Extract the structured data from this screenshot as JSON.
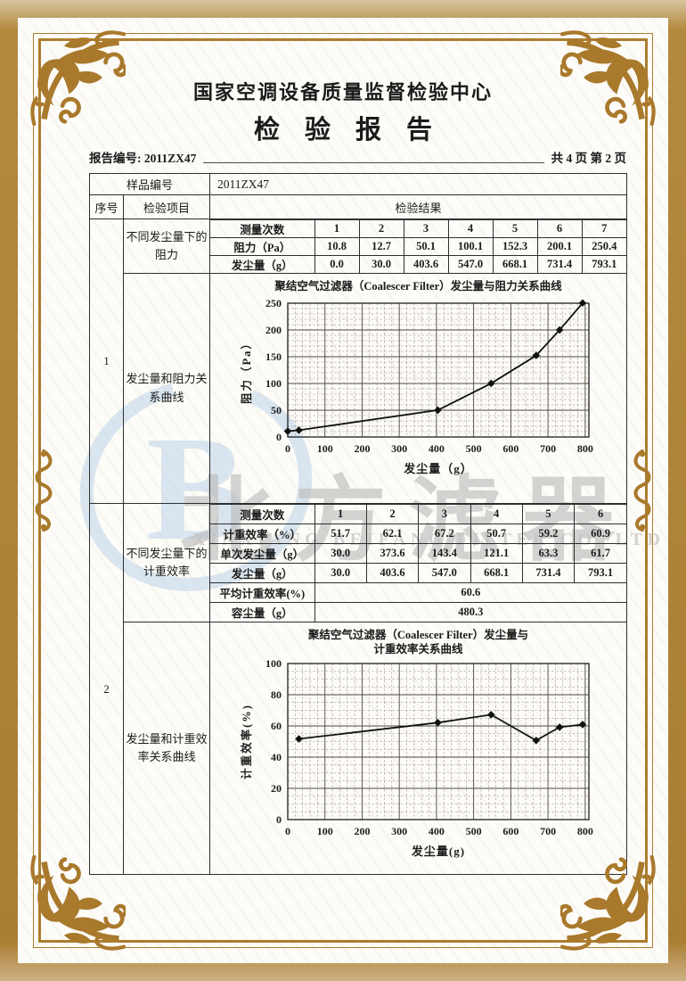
{
  "header": {
    "org_title": "国家空调设备质量监督检验中心",
    "doc_title": "检验报告",
    "report_no": "报告编号: 2011ZX47",
    "page_info": "共 4 页 第 2 页"
  },
  "table": {
    "sample_label": "样品编号",
    "sample_value": "2011ZX47",
    "col_serial": "序号",
    "col_item": "检验项目",
    "col_result": "检验结果",
    "row1_serial": "1",
    "row1_item1": "不同发尘量下的阻力",
    "row1_item2": "发尘量和阻力关系曲线",
    "row2_serial": "2",
    "row2_item1": "不同发尘量下的计重效率",
    "row2_item2": "发尘量和计重效率关系曲线"
  },
  "subtable1": {
    "header_label": "测量次数",
    "headers": [
      "1",
      "2",
      "3",
      "4",
      "5",
      "6",
      "7"
    ],
    "rows": [
      {
        "label": "阻力（Pa）",
        "values": [
          "10.8",
          "12.7",
          "50.1",
          "100.1",
          "152.3",
          "200.1",
          "250.4"
        ]
      },
      {
        "label": "发尘量（g）",
        "values": [
          "0.0",
          "30.0",
          "403.6",
          "547.0",
          "668.1",
          "731.4",
          "793.1"
        ]
      }
    ]
  },
  "subtable2": {
    "header_label": "测量次数",
    "headers": [
      "1",
      "2",
      "3",
      "4",
      "5",
      "6"
    ],
    "rows": [
      {
        "label": "计重效率（%）",
        "values": [
          "51.7",
          "62.1",
          "67.2",
          "50.7",
          "59.2",
          "60.9"
        ]
      },
      {
        "label": "单次发尘量（g）",
        "values": [
          "30.0",
          "373.6",
          "143.4",
          "121.1",
          "63.3",
          "61.7"
        ]
      },
      {
        "label": "发尘量（g）",
        "values": [
          "30.0",
          "403.6",
          "547.0",
          "668.1",
          "731.4",
          "793.1"
        ]
      }
    ],
    "summary_rows": [
      {
        "label": "平均计重效率(%)",
        "value": "60.6"
      },
      {
        "label": "容尘量（g）",
        "value": "480.3"
      }
    ]
  },
  "chart_data": [
    {
      "type": "line",
      "title": "聚结空气过滤器（Coalescer Filter）发尘量与阻力关系曲线",
      "xlabel": "发尘量（g）",
      "ylabel": "阻力（Pa）",
      "x": [
        0.0,
        30.0,
        403.6,
        547.0,
        668.1,
        731.4,
        793.1
      ],
      "y": [
        10.8,
        12.7,
        50.1,
        100.1,
        152.3,
        200.1,
        250.4
      ],
      "xlim": [
        0,
        810
      ],
      "ylim": [
        0,
        250
      ],
      "x_ticks": [
        0,
        100,
        200,
        300,
        400,
        500,
        600,
        700,
        800
      ],
      "y_ticks": [
        0,
        50,
        100,
        150,
        200,
        250
      ],
      "minor_x_step": 20,
      "minor_y_step": 10,
      "grid": true,
      "marker": "diamond",
      "legend": "none"
    },
    {
      "type": "line",
      "title": "聚结空气过滤器（Coalescer Filter）发尘量与计重效率关系曲线",
      "title_line1": "聚结空气过滤器（Coalescer Filter）发尘量与",
      "title_line2": "计重效率关系曲线",
      "xlabel": "发尘量(g)",
      "ylabel": "计重效率(%)",
      "x": [
        30.0,
        403.6,
        547.0,
        668.1,
        731.4,
        793.1
      ],
      "y": [
        51.7,
        62.1,
        67.2,
        50.7,
        59.2,
        60.9
      ],
      "xlim": [
        0,
        810
      ],
      "ylim": [
        0,
        100
      ],
      "x_ticks": [
        0,
        100,
        200,
        300,
        400,
        500,
        600,
        700,
        800
      ],
      "y_ticks": [
        0,
        20,
        40,
        60,
        80,
        100
      ],
      "minor_x_step": 20,
      "minor_y_step": 5,
      "grid": true,
      "marker": "diamond",
      "legend": "none"
    }
  ],
  "watermark": {
    "logo_letter": "B",
    "cn": "北方滤器",
    "en": "XINXIANG BEIFANG FILTER CO. LTD",
    "logo_color": "#bdd3e9",
    "text_color": "#b9b9b9"
  },
  "colors": {
    "band_gold": "#aa7f34",
    "frame_gold": "#ab7d2f",
    "paper": "#fdfcf8",
    "ink": "#1b1b1b"
  }
}
